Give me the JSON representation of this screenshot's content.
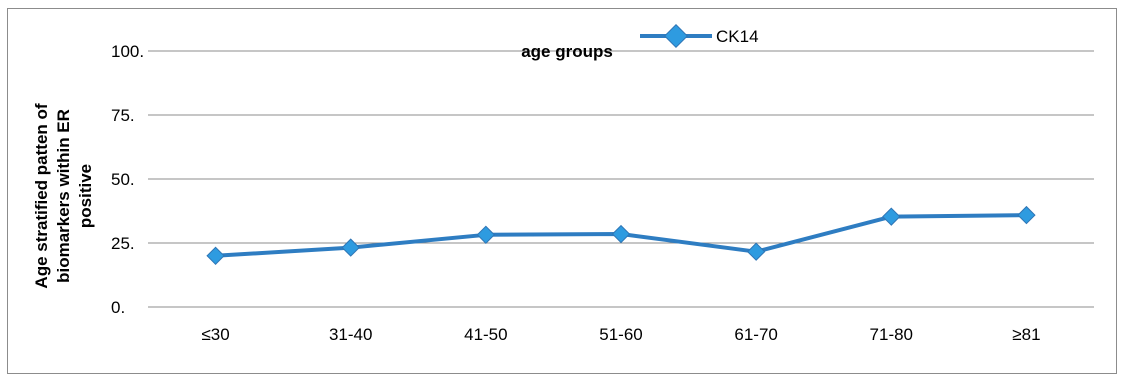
{
  "chart_data": {
    "type": "line",
    "title": "",
    "xlabel": "age groups",
    "ylabel_lines": [
      "Age stratified patten of",
      "biomarkers within ER",
      "positive"
    ],
    "categories": [
      "≤30",
      "31-40",
      "41-50",
      "51-60",
      "61-70",
      "71-80",
      "≥81"
    ],
    "series": [
      {
        "name": "CK14",
        "values": [
          20.0,
          23.2,
          28.2,
          28.5,
          21.6,
          35.3,
          35.9
        ]
      }
    ],
    "yticks": [
      "0.",
      "25.",
      "50.",
      "75.",
      "100."
    ],
    "ylim": [
      0,
      100
    ],
    "grid": true,
    "legend_position": "top",
    "colors": {
      "series": "#2e7dc2",
      "marker": "#2e9be0",
      "grid": "#8c8c8c"
    }
  }
}
